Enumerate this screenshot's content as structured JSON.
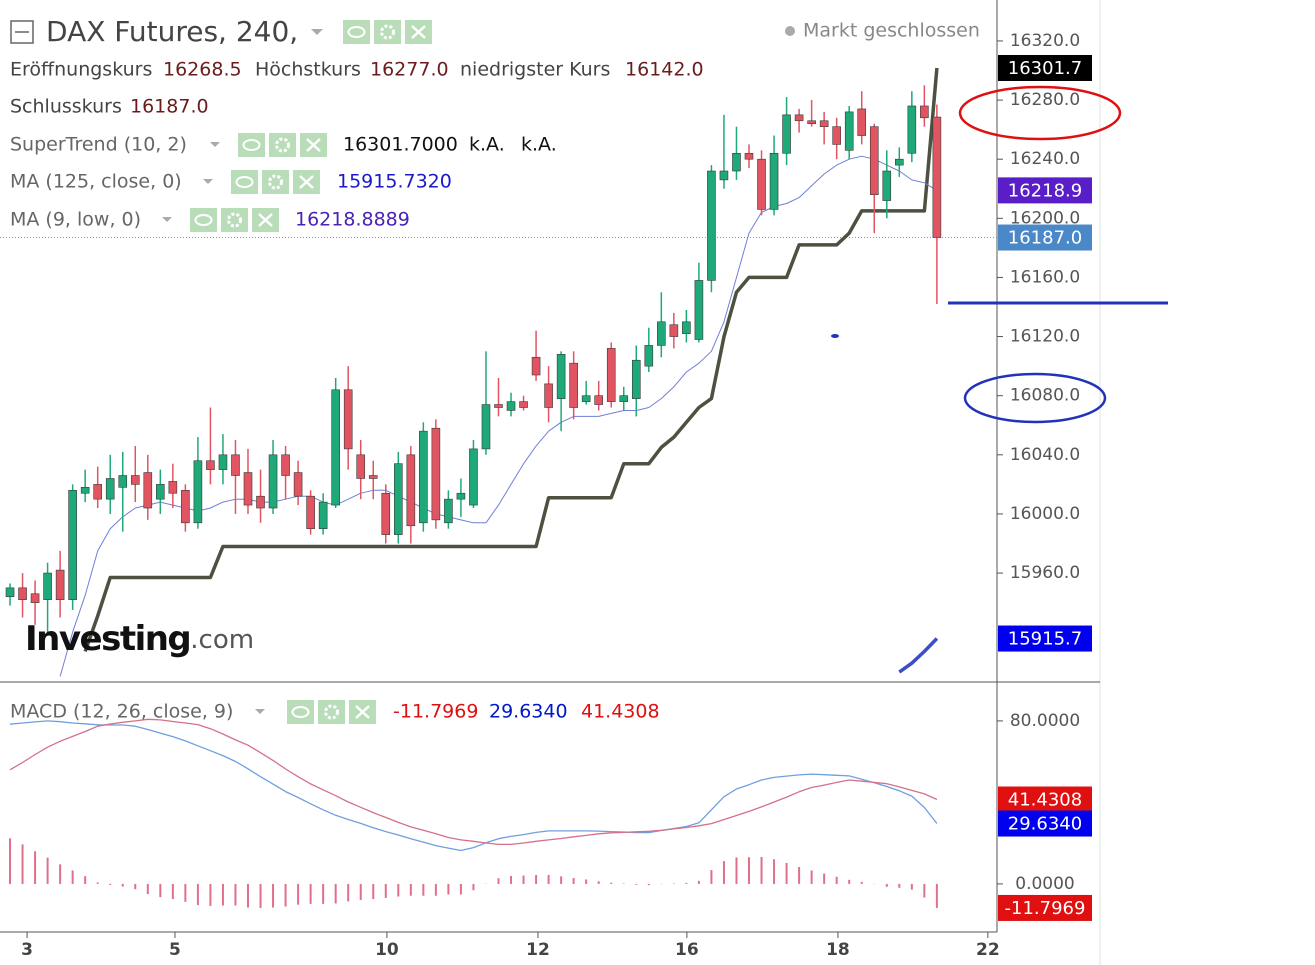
{
  "chart_data": [
    {
      "type": "candlestick",
      "title": "DAX Futures, 240,",
      "status": "Markt geschlossen",
      "ohlc": [
        {
          "label": "Eröffnungskurs",
          "value": "16268.5"
        },
        {
          "label": "Höchstkurs",
          "value": "16277.0"
        },
        {
          "label": "niedrigster Kurs",
          "value": "16142.0"
        },
        {
          "label": "Schlusskurs",
          "value": "16187.0"
        }
      ],
      "indicators": [
        {
          "name": "SuperTrend (10, 2)",
          "values": [
            "16301.7000",
            "k.A.",
            "k.A."
          ],
          "color": "#111111"
        },
        {
          "name": "MA (125, close, 0)",
          "values": [
            "15915.7320"
          ],
          "color": "#1a1acc"
        },
        {
          "name": "MA (9, low, 0)",
          "values": [
            "16218.8889"
          ],
          "color": "#4b22b8"
        }
      ],
      "logo": [
        "Investing",
        ".com"
      ],
      "up_color": "#1fa878",
      "down_color": "#e05561",
      "open": [
        15944,
        15950,
        15946,
        15942,
        15962,
        15942,
        16014,
        16020,
        16010,
        16018,
        16026,
        16028,
        16010,
        16022,
        16016,
        15994,
        16036,
        16030,
        16040,
        16028,
        16012,
        16004,
        16040,
        16028,
        16012,
        15990,
        16006,
        16084,
        16040,
        16026,
        16014,
        15986,
        16040,
        15994,
        16058,
        15994,
        16010,
        16006,
        16044,
        16074,
        16070,
        16076,
        16106,
        16088,
        16078,
        16102,
        16076,
        16080,
        16112,
        16076,
        16078,
        16100,
        16114,
        16128,
        16122,
        16118,
        16158,
        16226,
        16232,
        16244,
        16240,
        16206,
        16244,
        16270,
        16266,
        16266,
        16262,
        16246,
        16274,
        16262,
        16212,
        16236,
        16244,
        16276,
        16268.5
      ],
      "high": [
        15953,
        15960,
        15955,
        15967,
        15975,
        16020,
        16030,
        16032,
        16040,
        16042,
        16046,
        16040,
        16030,
        16034,
        16020,
        16052,
        16072,
        16054,
        16050,
        16044,
        16030,
        16050,
        16046,
        16036,
        16016,
        16014,
        16092,
        16100,
        16050,
        16036,
        16020,
        16042,
        16046,
        16062,
        16064,
        16016,
        16024,
        16050,
        16110,
        16092,
        16082,
        16080,
        16124,
        16100,
        16110,
        16110,
        16090,
        16090,
        16116,
        16086,
        16114,
        16126,
        16150,
        16136,
        16138,
        16170,
        16236,
        16270,
        16262,
        16250,
        16246,
        16256,
        16282,
        16274,
        16280,
        16272,
        16268,
        16276,
        16286,
        16264,
        16246,
        16248,
        16286,
        16290,
        16277
      ],
      "low": [
        15938,
        15930,
        15925,
        15920,
        15930,
        15935,
        16008,
        16004,
        16000,
        15988,
        16008,
        15996,
        16000,
        16004,
        15988,
        15990,
        16020,
        16020,
        16000,
        16000,
        15994,
        16000,
        16010,
        16006,
        15986,
        15986,
        16004,
        16030,
        16010,
        16010,
        15980,
        15980,
        15980,
        15988,
        15990,
        15990,
        15998,
        16004,
        16040,
        16066,
        16066,
        16070,
        16090,
        16062,
        16056,
        16064,
        16074,
        16070,
        16072,
        16070,
        16066,
        16096,
        16106,
        16112,
        16116,
        16116,
        16150,
        16220,
        16226,
        16234,
        16202,
        16202,
        16236,
        16258,
        16262,
        16250,
        16240,
        16240,
        16250,
        16190,
        16200,
        16228,
        16238,
        16262,
        16142
      ],
      "close": [
        15950,
        15942,
        15940,
        15960,
        15942,
        16016,
        16018,
        16010,
        16024,
        16026,
        16020,
        16004,
        16020,
        16014,
        15994,
        16036,
        16030,
        16040,
        16026,
        16006,
        16004,
        16040,
        16026,
        16012,
        15990,
        16008,
        16084,
        16044,
        16024,
        16024,
        15986,
        16034,
        15992,
        16056,
        15996,
        16010,
        16014,
        16044,
        16074,
        16072,
        16076,
        16072,
        16094,
        16072,
        16108,
        16072,
        16080,
        16074,
        16076,
        16080,
        16104,
        16114,
        16130,
        16120,
        16130,
        16158,
        16232,
        16232,
        16244,
        16240,
        16206,
        16244,
        16270,
        16266,
        16264,
        16262,
        16250,
        16272,
        16256,
        16216,
        16232,
        16240,
        16276,
        16268,
        16187
      ],
      "series": [
        {
          "color": "#4c5140",
          "style": "thick",
          "values": [
            null,
            null,
            null,
            null,
            null,
            null,
            15907,
            15931,
            15957,
            15957,
            15957,
            15957,
            15957,
            15957,
            15957,
            15957,
            15957,
            15978,
            15978,
            15978,
            15978,
            15978,
            15978,
            15978,
            15978,
            15978,
            15978,
            15978,
            15978,
            15978,
            15978,
            15978,
            15978,
            15978,
            15978,
            15978,
            15978,
            15978,
            15978,
            15978,
            15978,
            15978,
            15978,
            16011,
            16011,
            16011,
            16011,
            16011,
            16011,
            16034,
            16034,
            16034,
            16045,
            16052,
            16062,
            16072,
            16078,
            16120,
            16150,
            16160,
            16160,
            16160,
            16160,
            16182,
            16182,
            16182,
            16182,
            16190,
            16205,
            16205,
            16205,
            16205,
            16205,
            16205,
            16301.7
          ]
        },
        {
          "color": "#3a4ec8",
          "style": "thick",
          "values": [
            null,
            null,
            null,
            null,
            null,
            null,
            null,
            null,
            null,
            null,
            null,
            null,
            null,
            null,
            null,
            null,
            null,
            null,
            null,
            null,
            null,
            null,
            null,
            null,
            null,
            null,
            null,
            null,
            null,
            null,
            null,
            null,
            null,
            null,
            null,
            null,
            null,
            null,
            null,
            null,
            null,
            null,
            null,
            null,
            null,
            null,
            null,
            null,
            null,
            null,
            null,
            null,
            null,
            null,
            null,
            null,
            null,
            null,
            null,
            null,
            null,
            null,
            null,
            null,
            null,
            null,
            null,
            null,
            null,
            null,
            null,
            15893,
            15899,
            15907,
            15915.7
          ]
        },
        {
          "color": "#6f7fd6",
          "style": "thin",
          "values": [
            null,
            null,
            null,
            null,
            15890,
            15920,
            15945,
            15975,
            15990,
            15998,
            16004,
            16006,
            16008,
            16006,
            16004,
            16002,
            16004,
            16008,
            16010,
            16010,
            16008,
            16008,
            16010,
            16012,
            16012,
            16008,
            16006,
            16010,
            16014,
            16016,
            16016,
            16012,
            16008,
            16004,
            16000,
            15998,
            15996,
            15994,
            15994,
            16006,
            16020,
            16034,
            16046,
            16056,
            16062,
            16066,
            16066,
            16066,
            16068,
            16070,
            16070,
            16072,
            16078,
            16086,
            16096,
            16102,
            16110,
            16130,
            16160,
            16190,
            16204,
            16208,
            16210,
            16214,
            16222,
            16230,
            16236,
            16240,
            16242,
            16240,
            16236,
            16232,
            16226,
            16224,
            16218.9
          ]
        }
      ],
      "ylim": [
        15886.3,
        16347.7
      ],
      "yticks": [
        {
          "value": 15960,
          "label": "15960.0"
        },
        {
          "value": 16000,
          "label": "16000.0"
        },
        {
          "value": 16040,
          "label": "16040.0"
        },
        {
          "value": 16080,
          "label": "16080.0"
        },
        {
          "value": 16120,
          "label": "16120.0"
        },
        {
          "value": 16160,
          "label": "16160.0"
        },
        {
          "value": 16200,
          "label": "16200.0"
        },
        {
          "value": 16240,
          "label": "16240.0"
        },
        {
          "value": 16280,
          "label": "16280.0"
        },
        {
          "value": 16320,
          "label": "16320.0"
        }
      ],
      "price_tags": [
        {
          "value": 16301.7,
          "label": "16301.7",
          "color": "#000000"
        },
        {
          "value": 16218.9,
          "label": "16218.9",
          "color": "#5a1ec8"
        },
        {
          "value": 16187,
          "label": "16187.0",
          "color": "#4a88c8"
        },
        {
          "value": 15915.7,
          "label": "15915.7",
          "color": "#0000ee"
        }
      ],
      "xlim": [
        -0.8,
        78.8
      ],
      "xticks": [
        {
          "value": 1.36,
          "label": "3"
        },
        {
          "value": 13.17,
          "label": "5"
        },
        {
          "value": 30.09,
          "label": "10"
        },
        {
          "value": 42.15,
          "label": "12"
        },
        {
          "value": 54.04,
          "label": "16"
        },
        {
          "value": 66.1,
          "label": "18"
        },
        {
          "value": 78.07,
          "label": "22"
        }
      ]
    },
    {
      "type": "macd",
      "name": "MACD (12, 26, close, 9)",
      "header_values": [
        {
          "text": "-11.7969",
          "color": "#dd1111"
        },
        {
          "text": "29.6340",
          "color": "#0018c8"
        },
        {
          "text": "41.4308",
          "color": "#dd1111"
        }
      ],
      "series": [
        {
          "kind": "bar",
          "color": "#e0708a",
          "values": [
            22.4,
            19.4,
            16,
            12.9,
            9.6,
            6.6,
            3.8,
            0.7,
            -0.5,
            -1.3,
            -2.6,
            -5,
            -6.5,
            -7.4,
            -8.8,
            -10.4,
            -10.8,
            -10.6,
            -10.6,
            -11.6,
            -11.8,
            -11.6,
            -11.1,
            -10.2,
            -9.8,
            -9.8,
            -9.6,
            -8.6,
            -7.9,
            -7.4,
            -6.9,
            -6.2,
            -5.8,
            -5.8,
            -5.8,
            -5.2,
            -5.2,
            -3.1,
            0.1,
            2.8,
            3.9,
            4.1,
            4.4,
            4.4,
            3.7,
            2.9,
            2.2,
            1.3,
            0.6,
            0.2,
            -0.4,
            -0.6,
            -0.1,
            0.2,
            0.5,
            1.5,
            6.8,
            11.2,
            13,
            13.1,
            13.2,
            12.1,
            10.3,
            8.3,
            6.6,
            5.1,
            3.5,
            2,
            1,
            -0.1,
            -1.4,
            -1.9,
            -2.8,
            -6.7,
            -11.7969
          ]
        },
        {
          "kind": "line",
          "color": "#6f9fe0",
          "values": [
            78.4,
            79,
            79.5,
            80,
            79.6,
            79,
            78.6,
            78.1,
            78,
            78,
            77.4,
            75.8,
            74,
            72.3,
            70.2,
            67.8,
            65.4,
            63,
            60.1,
            56.5,
            52.6,
            49,
            45.3,
            42.4,
            39.3,
            36.4,
            33.7,
            31.6,
            29.7,
            27.6,
            25.7,
            24,
            22.2,
            20.5,
            18.8,
            17.6,
            16.4,
            17.8,
            20.2,
            22.2,
            23.3,
            24.2,
            25.3,
            26,
            26,
            26,
            26,
            25.9,
            25.7,
            25.5,
            25.2,
            25.2,
            26.2,
            27.2,
            28.2,
            30,
            36.4,
            42.8,
            46.6,
            48.7,
            51,
            52.3,
            52.9,
            53.5,
            53.9,
            53.6,
            53.3,
            53,
            51.4,
            49.7,
            47.8,
            45.7,
            43.1,
            37.5,
            29.634
          ]
        },
        {
          "kind": "line",
          "color": "#d4708a",
          "values": [
            56,
            59.6,
            63.5,
            67.1,
            70,
            72.4,
            74.8,
            77.4,
            78.5,
            79.3,
            80,
            80.8,
            80.5,
            79.7,
            79,
            78.2,
            76.2,
            73.6,
            70.7,
            68.1,
            64.4,
            60.6,
            56.4,
            52.6,
            49.1,
            46.2,
            43.3,
            40.2,
            37.6,
            35,
            32.6,
            30.2,
            28,
            26.3,
            24.6,
            22.8,
            21.6,
            20.9,
            20.1,
            19.4,
            19.4,
            20.1,
            20.9,
            21.6,
            22.3,
            23.1,
            23.8,
            24.6,
            25.1,
            25.3,
            25.6,
            25.8,
            26.3,
            27,
            27.7,
            28.5,
            29.6,
            31.6,
            33.6,
            35.6,
            37.8,
            40.2,
            42.6,
            45.2,
            47.3,
            48.5,
            49.8,
            51,
            50.4,
            49.8,
            49.2,
            47.6,
            45.9,
            44.2,
            41.4308
          ]
        }
      ],
      "ylim": [
        -23.6,
        99.1
      ],
      "yticks": [
        {
          "value": 0,
          "label": "0.0000"
        },
        {
          "value": 80,
          "label": "80.0000"
        }
      ],
      "price_tags": [
        {
          "value": 41.4308,
          "label": "41.4308",
          "color": "#e01010"
        },
        {
          "value": 29.634,
          "label": "29.6340",
          "color": "#0000ee"
        },
        {
          "value": -11.7969,
          "label": "-11.7969",
          "color": "#e01010"
        }
      ]
    }
  ]
}
